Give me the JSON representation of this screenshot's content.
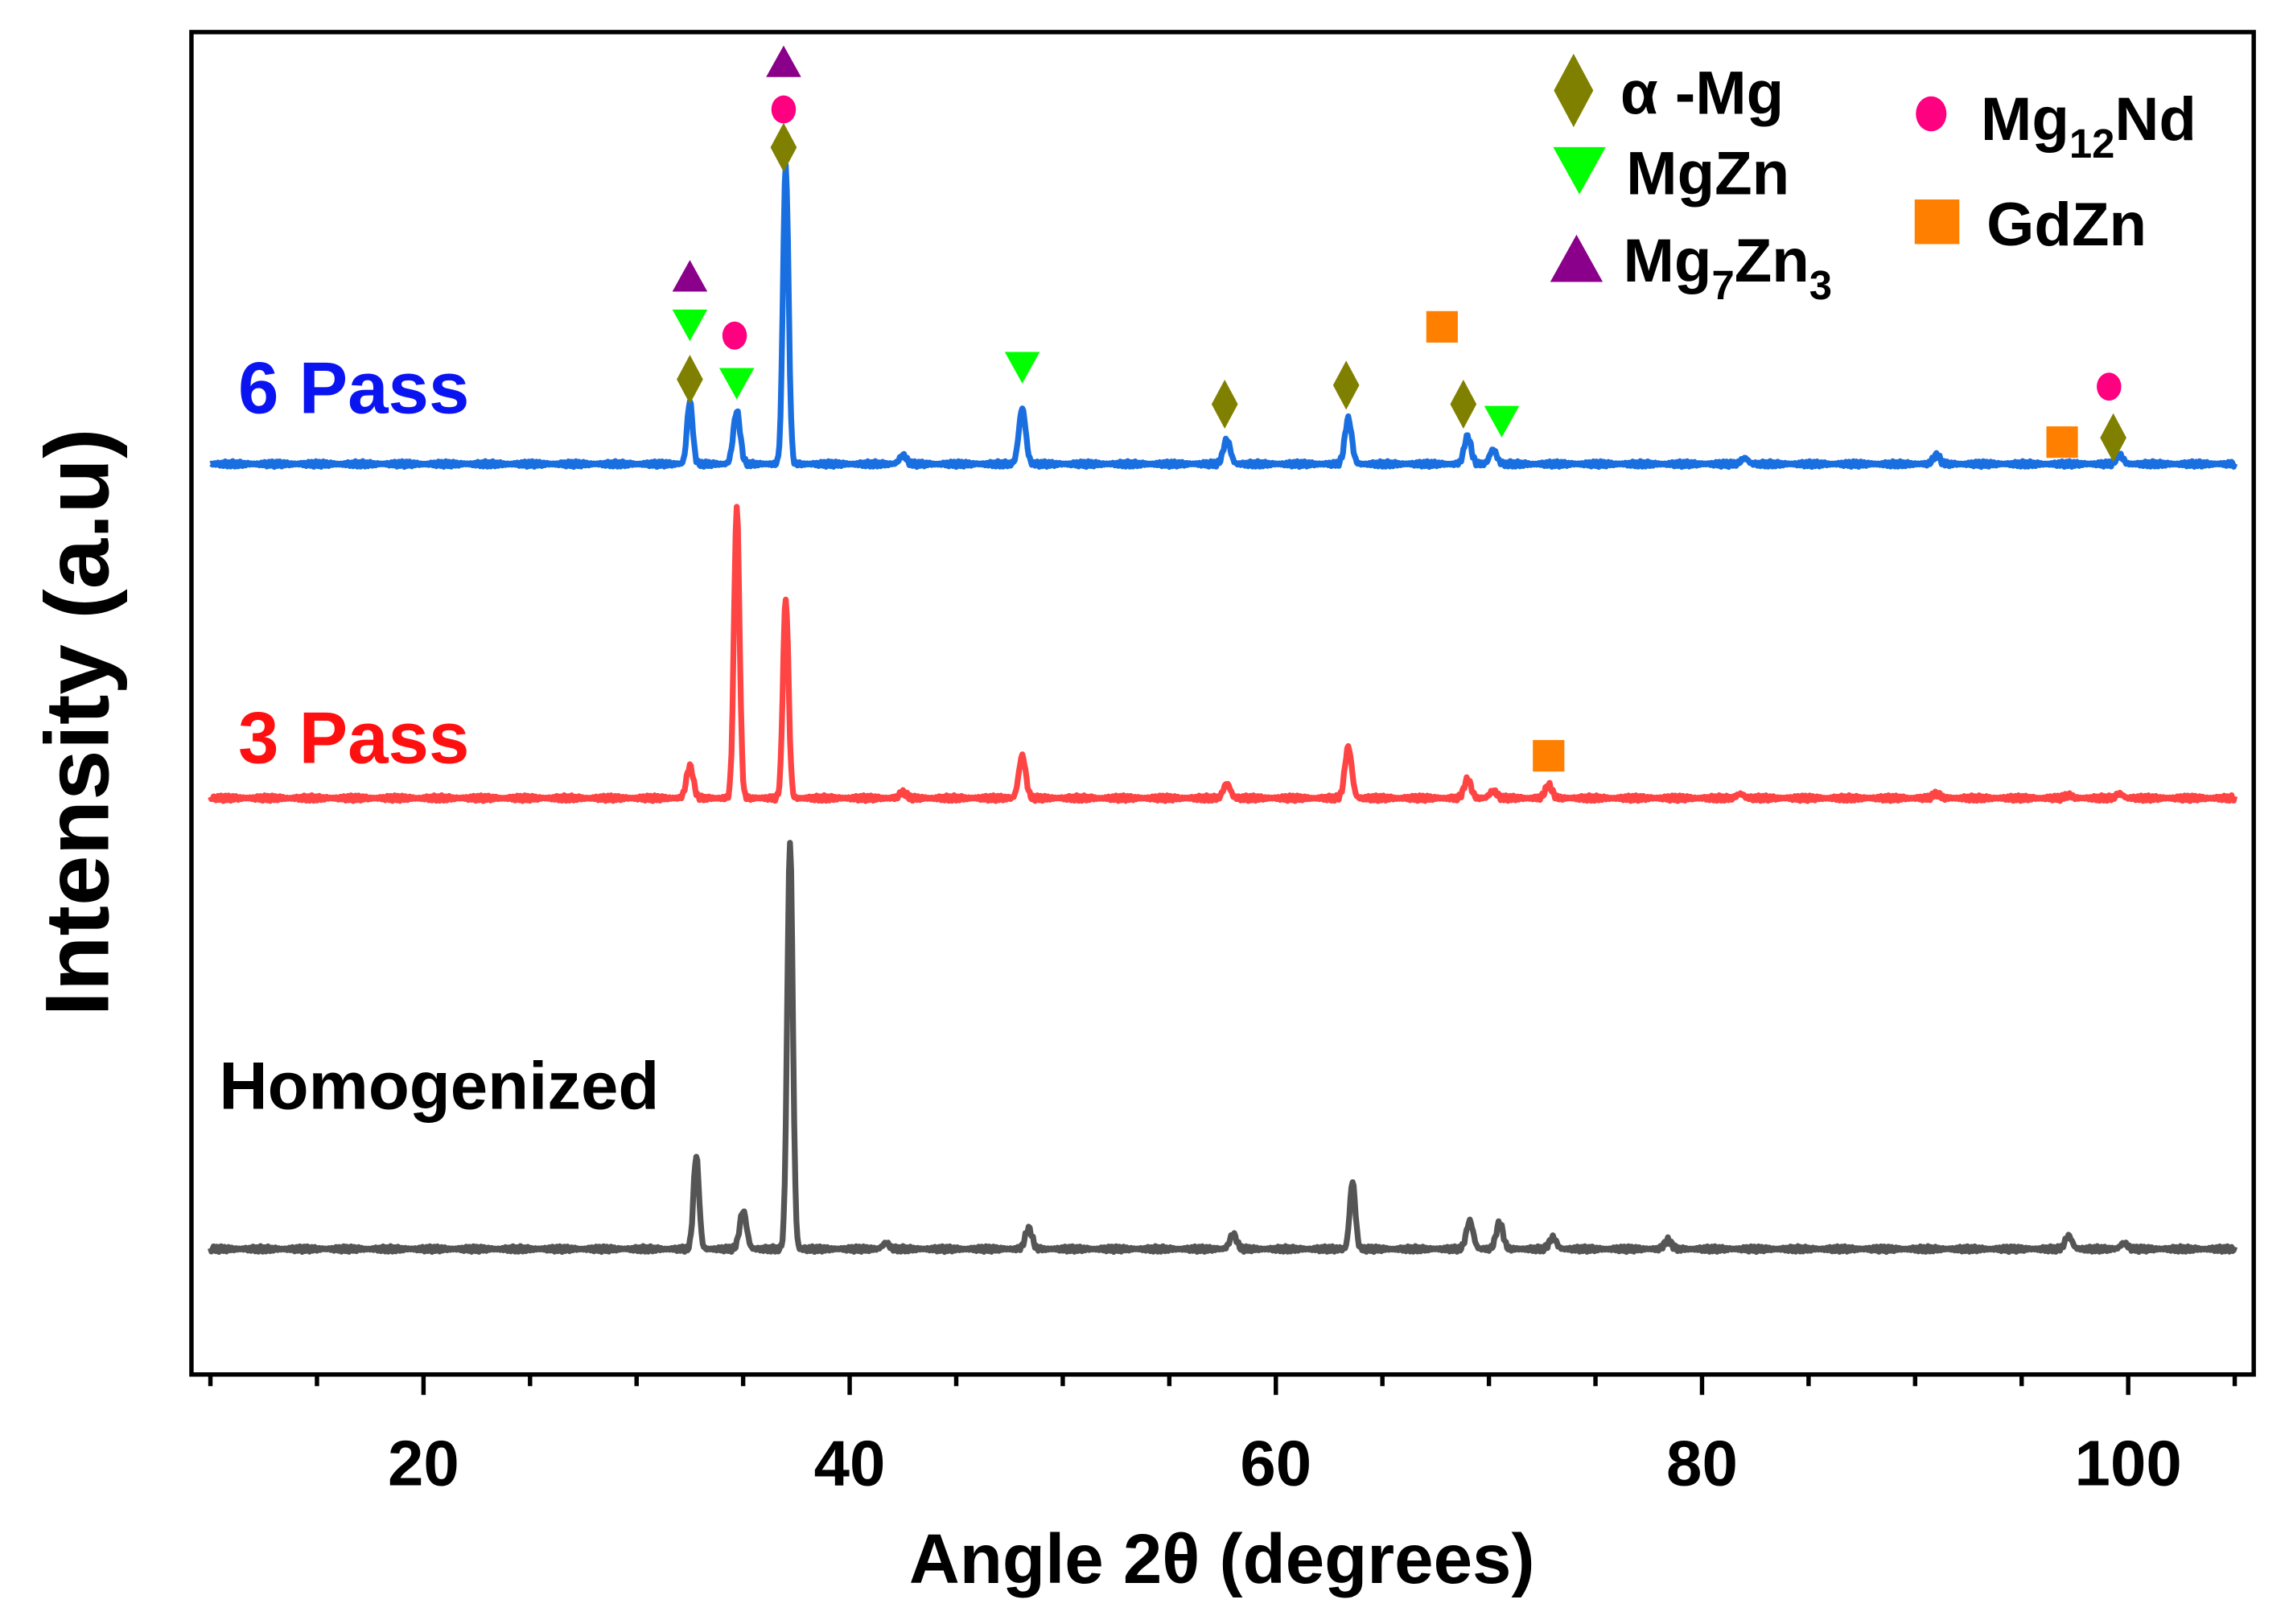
{
  "chart_data": {
    "type": "line",
    "title": "",
    "xlabel": "Angle 2θ (degrees)",
    "ylabel": "Intensity (a.u)",
    "xlim": [
      9,
      106
    ],
    "ylim": [
      0,
      920
    ],
    "xticks": [
      20,
      40,
      60,
      80,
      100
    ],
    "grid": false,
    "legend_placement": "top-right",
    "series": [
      {
        "name": "6 Pass",
        "color": "#1a6fe0",
        "label_color": "#0a14f0",
        "baseline": 624,
        "peaks": [
          [
            32.5,
            667
          ],
          [
            34.7,
            660
          ],
          [
            37.0,
            829
          ],
          [
            42.5,
            630
          ],
          [
            48.1,
            662
          ],
          [
            57.7,
            641
          ],
          [
            63.4,
            655
          ],
          [
            69.0,
            643
          ],
          [
            70.2,
            634
          ],
          [
            82,
            628
          ],
          [
            91,
            630
          ],
          [
            99.6,
            630
          ]
        ]
      },
      {
        "name": "3 Pass",
        "color": "#ff4444",
        "label_color": "#ff1010",
        "baseline": 395,
        "peaks": [
          [
            32.5,
            417
          ],
          [
            34.7,
            594
          ],
          [
            37.0,
            532
          ],
          [
            42.5,
            399
          ],
          [
            48.1,
            424
          ],
          [
            57.7,
            405
          ],
          [
            63.4,
            430
          ],
          [
            69.0,
            408
          ],
          [
            70.2,
            400
          ],
          [
            72.8,
            404
          ],
          [
            81.8,
            398
          ],
          [
            91,
            398
          ],
          [
            97.2,
            397
          ],
          [
            99.6,
            398
          ]
        ]
      },
      {
        "name": "Homogenized",
        "color": "#555555",
        "label_color": "#000000",
        "baseline": 86,
        "peaks": [
          [
            32.8,
            150
          ],
          [
            35.0,
            112
          ],
          [
            37.2,
            365
          ],
          [
            41.7,
            90
          ],
          [
            48.4,
            100
          ],
          [
            58.0,
            96
          ],
          [
            63.6,
            132
          ],
          [
            69.1,
            105
          ],
          [
            70.5,
            104
          ],
          [
            73.0,
            94
          ],
          [
            78.4,
            92
          ],
          [
            97.2,
            95
          ],
          [
            99.8,
            90
          ]
        ]
      }
    ],
    "legend": [
      {
        "label": "α -Mg",
        "base": "α -Mg",
        "sub": "",
        "rest": "",
        "marker": "diamond",
        "color": "#808000"
      },
      {
        "label": "MgZn",
        "base": "MgZn",
        "sub": "",
        "rest": "",
        "marker": "triangle-down",
        "color": "#00ff00"
      },
      {
        "label": "Mg7Zn3",
        "base": "Mg",
        "sub": "7",
        "rest": "Zn",
        "sub2": "3",
        "marker": "triangle-up",
        "color": "#8b008b"
      },
      {
        "label": "Mg12Nd",
        "base": "Mg",
        "sub": "12",
        "rest": "Nd",
        "marker": "circle",
        "color": "#ff0080"
      },
      {
        "label": "GdZn",
        "base": "GdZn",
        "sub": "",
        "rest": "",
        "marker": "square",
        "color": "#ff8000"
      }
    ],
    "phase_markers": [
      {
        "phase": "α -Mg",
        "x": 32.5,
        "y": 682
      },
      {
        "phase": "MgZn",
        "x": 32.5,
        "y": 719
      },
      {
        "phase": "Mg7Zn3",
        "x": 32.5,
        "y": 753
      },
      {
        "phase": "Mg12Nd",
        "x": 34.6,
        "y": 712
      },
      {
        "phase": "MgZn",
        "x": 34.7,
        "y": 679
      },
      {
        "phase": "Mg7Zn3",
        "x": 36.9,
        "y": 900
      },
      {
        "phase": "Mg12Nd",
        "x": 36.9,
        "y": 867
      },
      {
        "phase": "α -Mg",
        "x": 36.9,
        "y": 841
      },
      {
        "phase": "MgZn",
        "x": 48.1,
        "y": 690
      },
      {
        "phase": "α -Mg",
        "x": 57.6,
        "y": 665
      },
      {
        "phase": "α -Mg",
        "x": 63.3,
        "y": 678
      },
      {
        "phase": "GdZn",
        "x": 67.8,
        "y": 718
      },
      {
        "phase": "α -Mg",
        "x": 68.8,
        "y": 665
      },
      {
        "phase": "MgZn",
        "x": 70.6,
        "y": 653
      },
      {
        "phase": "GdZn",
        "x": 96.9,
        "y": 639
      },
      {
        "phase": "Mg12Nd",
        "x": 99.1,
        "y": 677
      },
      {
        "phase": "α -Mg",
        "x": 99.3,
        "y": 642
      },
      {
        "phase": "GdZn",
        "x": 72.8,
        "y": 424
      }
    ]
  }
}
